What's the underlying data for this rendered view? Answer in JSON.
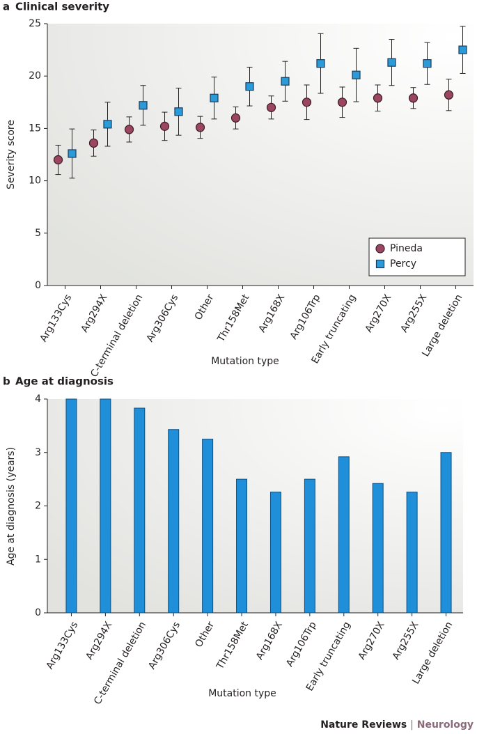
{
  "chart_data": [
    {
      "type": "errorbar",
      "panel": "a",
      "title": "Clinical severity",
      "x_label": "Mutation type",
      "y_label": "Severity score",
      "categories": [
        "Arg133Cys",
        "Arg294X",
        "C-terminal deletion",
        "Arg306Cys",
        "Other",
        "Thr158Met",
        "Arg168X",
        "Arg106Trp",
        "Early truncating",
        "Arg270X",
        "Arg255X",
        "Large deletion"
      ],
      "series": [
        {
          "name": "Pineda",
          "color": "#9a4660",
          "marker": "circle",
          "values": [
            12.0,
            13.6,
            14.9,
            15.2,
            15.1,
            16.0,
            17.0,
            17.5,
            17.5,
            17.9,
            17.9,
            18.2
          ],
          "errors": [
            1.4,
            1.25,
            1.2,
            1.35,
            1.05,
            1.05,
            1.1,
            1.65,
            1.45,
            1.25,
            1.0,
            1.5
          ]
        },
        {
          "name": "Percy",
          "color": "#2b9ad8",
          "marker": "square",
          "values": [
            12.6,
            15.4,
            17.2,
            16.6,
            17.9,
            19.0,
            19.5,
            21.2,
            20.1,
            21.3,
            21.2,
            22.5
          ],
          "errors": [
            2.35,
            2.1,
            1.9,
            2.25,
            2.0,
            1.85,
            1.9,
            2.85,
            2.55,
            2.2,
            2.0,
            2.25
          ]
        }
      ],
      "ylim": [
        0,
        25
      ],
      "yticks": [
        0,
        5,
        10,
        15,
        20,
        25
      ],
      "legend": "lower right"
    },
    {
      "type": "bar",
      "panel": "b",
      "title": "Age at diagnosis",
      "x_label": "Mutation type",
      "y_label": "Age at diagnosis (years)",
      "categories": [
        "Arg133Cys",
        "Arg294X",
        "C-terminal deletion",
        "Arg306Cys",
        "Other",
        "Thr158Met",
        "Arg168X",
        "Arg106Trp",
        "Early truncating",
        "Arg270X",
        "Arg255X",
        "Large deletion"
      ],
      "values": [
        4,
        4,
        3.83,
        3.43,
        3.25,
        2.5,
        2.26,
        2.5,
        2.92,
        2.42,
        2.26,
        3.0
      ],
      "color": "#1e8fd8",
      "ylim": [
        0,
        4
      ],
      "yticks": [
        0,
        1,
        2,
        3,
        4
      ]
    }
  ],
  "footer": [
    "Nature Reviews",
    "|",
    "Neurology"
  ]
}
